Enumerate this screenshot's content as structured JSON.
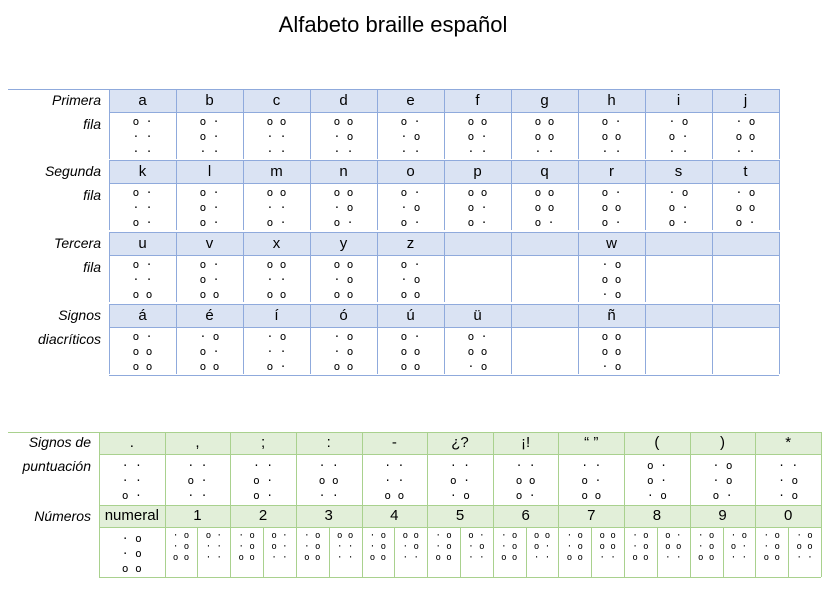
{
  "title": "Alfabeto braille español",
  "table1": {
    "rows": [
      {
        "label": [
          "Primera",
          "fila"
        ],
        "letters": [
          "a",
          "b",
          "c",
          "d",
          "e",
          "f",
          "g",
          "h",
          "i",
          "j"
        ],
        "cells": [
          "o ·\n· ·\n· ·",
          "o ·\no ·\n· ·",
          "o o\n· ·\n· ·",
          "o o\n· o\n· ·",
          "o ·\n· o\n· ·",
          "o o\no ·\n· ·",
          "o o\no o\n· ·",
          "o ·\no o\n· ·",
          "· o\no ·\n· ·",
          "· o\no o\n· ·"
        ]
      },
      {
        "label": [
          "Segunda",
          "fila"
        ],
        "letters": [
          "k",
          "l",
          "m",
          "n",
          "o",
          "p",
          "q",
          "r",
          "s",
          "t"
        ],
        "cells": [
          "o ·\n· ·\no ·",
          "o ·\no ·\no ·",
          "o o\n· ·\no ·",
          "o o\n· o\no ·",
          "o ·\n· o\no ·",
          "o o\no ·\no ·",
          "o o\no o\no ·",
          "o ·\no o\no ·",
          "· o\no ·\no ·",
          "· o\no o\no ·"
        ]
      },
      {
        "label": [
          "Tercera",
          "fila"
        ],
        "letters": [
          "u",
          "v",
          "x",
          "y",
          "z",
          "",
          "",
          "w",
          "",
          ""
        ],
        "cells": [
          "o ·\n· ·\no o",
          "o ·\no ·\no o",
          "o o\n· ·\no o",
          "o o\n· o\no o",
          "o ·\n· o\no o",
          "",
          "",
          "· o\no o\n· o",
          "",
          ""
        ]
      },
      {
        "label": [
          "Signos",
          "diacríticos"
        ],
        "letters": [
          "á",
          "é",
          "í",
          "ó",
          "ú",
          "ü",
          "",
          "ñ",
          "",
          ""
        ],
        "cells": [
          "o ·\no o\no o",
          "· o\no ·\no o",
          "· o\n· ·\no ·",
          "· o\n· o\no o",
          "o ·\no o\no o",
          "o ·\no o\n· o",
          "",
          "o o\no o\n· o",
          "",
          ""
        ]
      }
    ]
  },
  "table2": {
    "punct_label": [
      "Signos de",
      "puntuación"
    ],
    "punct_heads": [
      ".",
      ",",
      ";",
      ":",
      "-",
      "¿?",
      "¡!",
      "“ ”",
      "(",
      ")",
      "*"
    ],
    "punct_cells": [
      "· ·\n· ·\no ·",
      "· ·\no ·\n· ·",
      "· ·\no ·\no ·",
      "· ·\no o\n· ·",
      "· ·\n· ·\no o",
      "· ·\no ·\n· o",
      "· ·\no o\no ·",
      "· ·\no ·\no o",
      "o ·\no ·\n· o",
      "· o\n· o\no ·",
      "· ·\n· o\n· o"
    ],
    "num_label": "Números",
    "num_heads": [
      "numeral",
      "1",
      "2",
      "3",
      "4",
      "5",
      "6",
      "7",
      "8",
      "9",
      "0"
    ],
    "numeral_cell": "· o\n· o\no o",
    "num_cells": [
      [
        "· o\n· o\no o",
        "o ·\n· ·\n· ·"
      ],
      [
        "· o\n· o\no o",
        "o ·\no ·\n· ·"
      ],
      [
        "· o\n· o\no o",
        "o o\n· ·\n· ·"
      ],
      [
        "· o\n· o\no o",
        "o o\n· o\n· ·"
      ],
      [
        "· o\n· o\no o",
        "o ·\n· o\n· ·"
      ],
      [
        "· o\n· o\no o",
        "o o\no ·\n· ·"
      ],
      [
        "· o\n· o\no o",
        "o o\no o\n· ·"
      ],
      [
        "· o\n· o\no o",
        "o ·\no o\n· ·"
      ],
      [
        "· o\n· o\no o",
        "· o\no ·\n· ·"
      ],
      [
        "· o\n· o\no o",
        "· o\no o\n· ·"
      ]
    ]
  }
}
